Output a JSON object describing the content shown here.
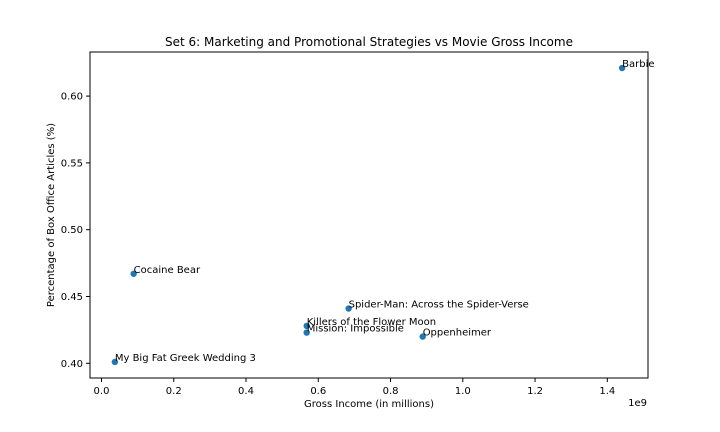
{
  "chart_data": {
    "type": "scatter",
    "title": "Set 6: Marketing and Promotional Strategies vs Movie Gross Income",
    "xlabel": "Gross Income (in millions)",
    "ylabel": "Percentage of Box Office Articles (%)",
    "x_offset_text": "1e9",
    "xlim": [
      -0.0318,
      1.5126
    ],
    "ylim": [
      0.389,
      0.633
    ],
    "x_ticks": [
      0.0,
      0.2,
      0.4,
      0.6,
      0.8,
      1.0,
      1.2,
      1.4
    ],
    "x_tick_labels": [
      "0.0",
      "0.2",
      "0.4",
      "0.6",
      "0.8",
      "1.0",
      "1.2",
      "1.4"
    ],
    "y_ticks": [
      0.4,
      0.45,
      0.5,
      0.55,
      0.6
    ],
    "y_tick_labels": [
      "0.40",
      "0.45",
      "0.50",
      "0.55",
      "0.60"
    ],
    "grid": false,
    "marker_color": "#1f77b4",
    "points": [
      {
        "label": "Barbie",
        "x": 1.441,
        "y": 0.621
      },
      {
        "label": "Cocaine Bear",
        "x": 0.089,
        "y": 0.467
      },
      {
        "label": "Spider-Man: Across the Spider-Verse",
        "x": 0.684,
        "y": 0.441
      },
      {
        "label": "Killers of the Flower Moon",
        "x": 0.568,
        "y": 0.428
      },
      {
        "label": "Mission: Impossible",
        "x": 0.568,
        "y": 0.423
      },
      {
        "label": "Oppenheimer",
        "x": 0.889,
        "y": 0.42
      },
      {
        "label": "My Big Fat Greek Wedding 3",
        "x": 0.037,
        "y": 0.401
      }
    ]
  }
}
